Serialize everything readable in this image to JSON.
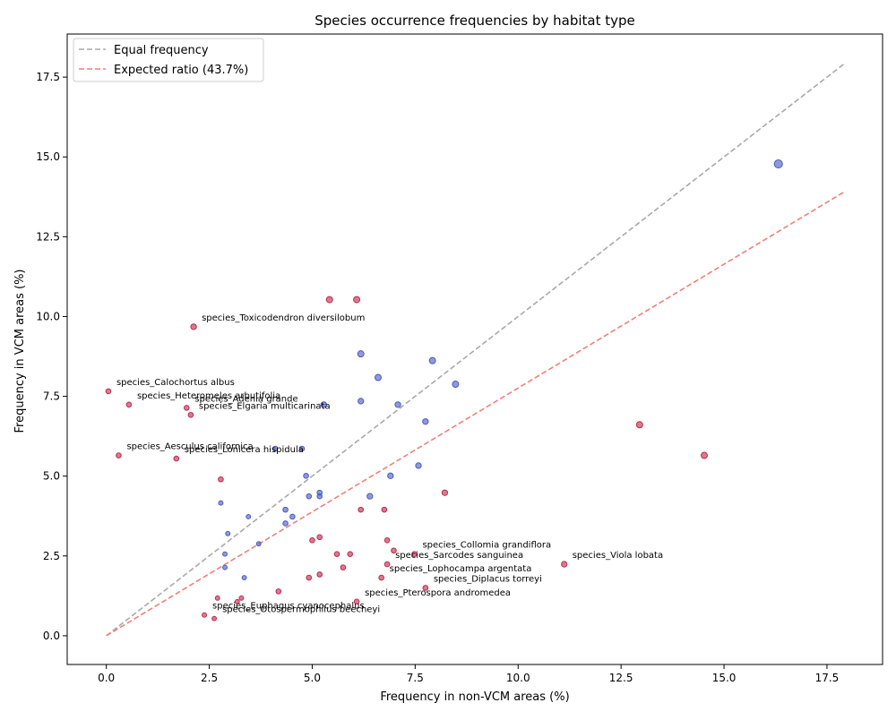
{
  "chart_data": {
    "type": "scatter",
    "title": "Species occurrence frequencies by habitat type",
    "xlabel": "Frequency in non-VCM areas (%)",
    "ylabel": "Frequency in VCM areas (%)",
    "xlim": [
      -0.95,
      18.85
    ],
    "ylim": [
      -0.9,
      18.85
    ],
    "xticks": [
      0.0,
      2.5,
      5.0,
      7.5,
      10.0,
      12.5,
      15.0,
      17.5
    ],
    "xtick_labels": [
      "0.0",
      "2.5",
      "5.0",
      "7.5",
      "10.0",
      "12.5",
      "15.0",
      "17.5"
    ],
    "yticks": [
      0.0,
      2.5,
      5.0,
      7.5,
      10.0,
      12.5,
      15.0,
      17.5
    ],
    "ytick_labels": [
      "0.0",
      "2.5",
      "5.0",
      "7.5",
      "10.0",
      "12.5",
      "15.0",
      "17.5"
    ],
    "grid": false,
    "legend": {
      "position": "top-left",
      "entries": [
        {
          "label": "Equal frequency",
          "color": "#a9a9a9",
          "style": "dashed"
        },
        {
          "label": "Expected ratio (43.7%)",
          "color": "#f0807a",
          "style": "dashed"
        }
      ]
    },
    "reference_lines": [
      {
        "kind": "equal",
        "slope": 1.0,
        "x": [
          0,
          17.95
        ],
        "color": "#a9a9a9"
      },
      {
        "kind": "expected",
        "slope": 0.776,
        "x": [
          0,
          17.95
        ],
        "color": "#f0807a"
      }
    ],
    "colors": {
      "above": "#4a5bc4",
      "below": "#bf2a4c"
    },
    "points": [
      {
        "x": 16.32,
        "y": 14.78,
        "c": "above",
        "s": 6.5
      },
      {
        "x": 5.42,
        "y": 10.53,
        "c": "below",
        "s": 5
      },
      {
        "x": 6.08,
        "y": 10.53,
        "c": "below",
        "s": 5
      },
      {
        "x": 2.12,
        "y": 9.68,
        "c": "below",
        "s": 4.5,
        "label": "species_Toxicodendron diversilobum"
      },
      {
        "x": 6.18,
        "y": 8.83,
        "c": "above",
        "s": 5
      },
      {
        "x": 6.6,
        "y": 8.09,
        "c": "above",
        "s": 5
      },
      {
        "x": 7.92,
        "y": 8.62,
        "c": "above",
        "s": 5
      },
      {
        "x": 8.48,
        "y": 7.88,
        "c": "above",
        "s": 5
      },
      {
        "x": 0.05,
        "y": 7.66,
        "c": "below",
        "s": 4,
        "label": "species_Calochortus albus"
      },
      {
        "x": 0.55,
        "y": 7.24,
        "c": "below",
        "s": 4,
        "label": "species_Heteromeles arbutifolia"
      },
      {
        "x": 1.95,
        "y": 7.14,
        "c": "below",
        "s": 4,
        "label": "species_Adenia grande"
      },
      {
        "x": 2.05,
        "y": 6.92,
        "c": "below",
        "s": 4,
        "label": "species_Elgaria multicarinata"
      },
      {
        "x": 5.28,
        "y": 7.24,
        "c": "above",
        "s": 4.5
      },
      {
        "x": 6.18,
        "y": 7.35,
        "c": "above",
        "s": 4.5
      },
      {
        "x": 7.08,
        "y": 7.24,
        "c": "above",
        "s": 4.5
      },
      {
        "x": 7.75,
        "y": 6.71,
        "c": "above",
        "s": 4.5
      },
      {
        "x": 12.95,
        "y": 6.61,
        "c": "below",
        "s": 5
      },
      {
        "x": 14.52,
        "y": 5.65,
        "c": "below",
        "s": 5
      },
      {
        "x": 0.3,
        "y": 5.65,
        "c": "below",
        "s": 4,
        "label": "species_Aesculus californica"
      },
      {
        "x": 1.7,
        "y": 5.55,
        "c": "below",
        "s": 4,
        "label": "species_Lonicera hispidula"
      },
      {
        "x": 4.1,
        "y": 5.86,
        "c": "above",
        "s": 4
      },
      {
        "x": 4.75,
        "y": 5.86,
        "c": "above",
        "s": 4
      },
      {
        "x": 7.58,
        "y": 5.33,
        "c": "above",
        "s": 4.5
      },
      {
        "x": 4.85,
        "y": 5.01,
        "c": "above",
        "s": 4
      },
      {
        "x": 6.9,
        "y": 5.01,
        "c": "above",
        "s": 4.5
      },
      {
        "x": 2.78,
        "y": 4.9,
        "c": "below",
        "s": 4
      },
      {
        "x": 8.22,
        "y": 4.48,
        "c": "below",
        "s": 4.5
      },
      {
        "x": 4.92,
        "y": 4.37,
        "c": "above",
        "s": 4
      },
      {
        "x": 5.18,
        "y": 4.48,
        "c": "above",
        "s": 4
      },
      {
        "x": 5.18,
        "y": 4.37,
        "c": "above",
        "s": 4
      },
      {
        "x": 6.4,
        "y": 4.37,
        "c": "above",
        "s": 4.5
      },
      {
        "x": 2.78,
        "y": 4.16,
        "c": "above",
        "s": 3.5
      },
      {
        "x": 4.35,
        "y": 3.95,
        "c": "above",
        "s": 4
      },
      {
        "x": 6.18,
        "y": 3.95,
        "c": "below",
        "s": 4
      },
      {
        "x": 6.75,
        "y": 3.95,
        "c": "below",
        "s": 4
      },
      {
        "x": 3.45,
        "y": 3.73,
        "c": "above",
        "s": 3.5
      },
      {
        "x": 4.52,
        "y": 3.73,
        "c": "above",
        "s": 4
      },
      {
        "x": 4.35,
        "y": 3.52,
        "c": "above",
        "s": 4
      },
      {
        "x": 2.95,
        "y": 3.2,
        "c": "above",
        "s": 3.5
      },
      {
        "x": 5.18,
        "y": 3.09,
        "c": "below",
        "s": 4
      },
      {
        "x": 5.0,
        "y": 2.99,
        "c": "below",
        "s": 4
      },
      {
        "x": 6.82,
        "y": 2.99,
        "c": "below",
        "s": 4
      },
      {
        "x": 3.7,
        "y": 2.88,
        "c": "above",
        "s": 3.5
      },
      {
        "x": 6.98,
        "y": 2.67,
        "c": "below",
        "s": 4
      },
      {
        "x": 2.88,
        "y": 2.56,
        "c": "above",
        "s": 3.5
      },
      {
        "x": 5.6,
        "y": 2.56,
        "c": "below",
        "s": 4
      },
      {
        "x": 5.92,
        "y": 2.56,
        "c": "below",
        "s": 4
      },
      {
        "x": 7.48,
        "y": 2.56,
        "c": "below",
        "s": 4,
        "label": "species_Collomia grandiflora"
      },
      {
        "x": 11.12,
        "y": 2.24,
        "c": "below",
        "s": 4.5,
        "label": "species_Viola lobata"
      },
      {
        "x": 6.82,
        "y": 2.24,
        "c": "below",
        "s": 4,
        "label": "species_Sarcodes sanguinea"
      },
      {
        "x": 2.88,
        "y": 2.14,
        "c": "above",
        "s": 3.5
      },
      {
        "x": 5.75,
        "y": 2.14,
        "c": "below",
        "s": 4
      },
      {
        "x": 5.18,
        "y": 1.92,
        "c": "below",
        "s": 4
      },
      {
        "x": 3.35,
        "y": 1.82,
        "c": "above",
        "s": 3.5
      },
      {
        "x": 4.92,
        "y": 1.82,
        "c": "below",
        "s": 4
      },
      {
        "x": 6.68,
        "y": 1.82,
        "c": "below",
        "s": 4,
        "label": "species_Lophocampa argentata"
      },
      {
        "x": 7.75,
        "y": 1.5,
        "c": "below",
        "s": 4,
        "label": "species_Diplacus torreyi"
      },
      {
        "x": 4.18,
        "y": 1.39,
        "c": "below",
        "s": 4
      },
      {
        "x": 2.7,
        "y": 1.18,
        "c": "below",
        "s": 3.5
      },
      {
        "x": 3.28,
        "y": 1.18,
        "c": "below",
        "s": 3.5
      },
      {
        "x": 3.18,
        "y": 1.07,
        "c": "below",
        "s": 3.5
      },
      {
        "x": 6.08,
        "y": 1.07,
        "c": "below",
        "s": 4,
        "label": "species_Pterospora andromedea"
      },
      {
        "x": 2.38,
        "y": 0.65,
        "c": "below",
        "s": 3.5,
        "label": "species_Euphagus cyanocephalus"
      },
      {
        "x": 2.62,
        "y": 0.54,
        "c": "below",
        "s": 3.5,
        "label": "species_Otospermophilus beecheyi"
      }
    ]
  }
}
